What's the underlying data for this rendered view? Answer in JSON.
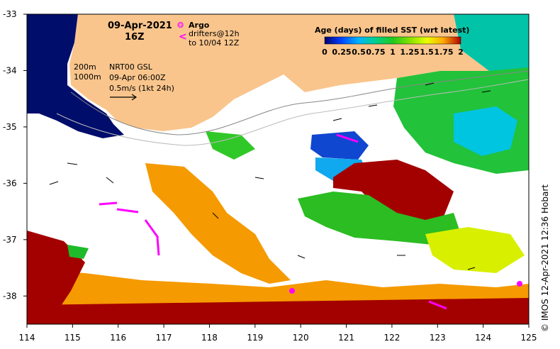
{
  "header": {
    "date": "09-Apr-2021",
    "time": "16Z"
  },
  "legend_left": {
    "argo_symbol": "❂",
    "argo_label": "Argo",
    "drifters_symbol": "<",
    "drifters_label": "drifters@12h",
    "drifters_until": "to 10/04 12Z"
  },
  "bathymetry": {
    "contour_200": "200m",
    "contour_1000": "1000m"
  },
  "currents_info": {
    "source": "NRT00 GSL",
    "time": "09-Apr 06:00Z",
    "scale": "0.5m/s (1kt 24h)"
  },
  "colorbar": {
    "title": "Age (days) of filled SST (wrt latest)",
    "ticks": [
      "0",
      "0.25",
      "0.5",
      "0.75",
      "1",
      "1.25",
      "1.5",
      "1.75",
      "2"
    ],
    "range": [
      0,
      2
    ],
    "colors": [
      "#00006e",
      "#0040ff",
      "#00b4ff",
      "#00d090",
      "#20c820",
      "#80e000",
      "#e8ff00",
      "#ffaa00",
      "#b00000"
    ]
  },
  "axes": {
    "x_ticks": [
      "114",
      "115",
      "116",
      "117",
      "118",
      "119",
      "120",
      "121",
      "122",
      "123",
      "124",
      "125"
    ],
    "y_ticks": [
      "-33",
      "-34",
      "-35",
      "-36",
      "-37",
      "-38"
    ],
    "lon_range": [
      114,
      125
    ],
    "lat_range": [
      -38.5,
      -33
    ]
  },
  "credit": "© IMOS 12-Apr-2021 12:36 Hobart",
  "colors": {
    "land": "#f9c58c",
    "deep_age": "#000d6b",
    "old_age": "#a30000",
    "mid_age": "#f59a00",
    "green_age": "#20c820",
    "argo": "#ff00ff"
  }
}
